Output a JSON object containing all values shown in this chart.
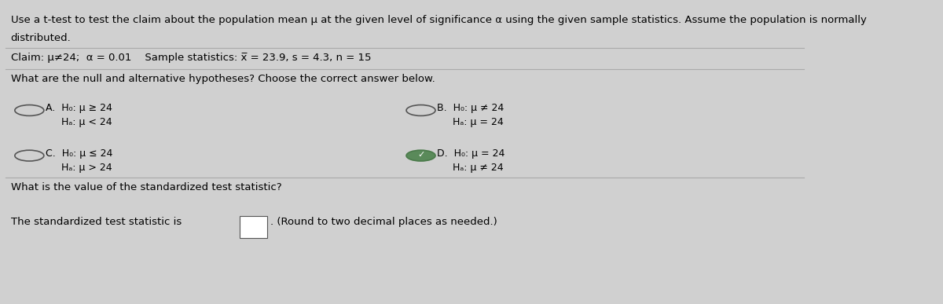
{
  "bg_color": "#d0d0d0",
  "panel_color": "#e8e8e8",
  "text_color": "#000000",
  "line1": "Use a t-test to test the claim about the population mean μ at the given level of significance α using the given sample statistics. Assume the population is normally",
  "line2": "distributed.",
  "claim_line": "Claim: μ≠24;  α = 0.01    Sample statistics: x̅ = 23.9, s = 4.3, n = 15",
  "question1": "What are the null and alternative hypotheses? Choose the correct answer below.",
  "opt_A_line1": "A.  H₀: μ ≥ 24",
  "opt_A_line2": "     Hₐ: μ < 24",
  "opt_B_line1": "B.  H₀: μ ≠ 24",
  "opt_B_line2": "     Hₐ: μ = 24",
  "opt_C_line1": "C.  H₀: μ ≤ 24",
  "opt_C_line2": "     Hₐ: μ > 24",
  "opt_D_line1": "D.  H₀: μ = 24",
  "opt_D_line2": "     Hₐ: μ ≠ 24",
  "question2": "What is the value of the standardized test statistic?",
  "sep_color": "#aaaaaa",
  "circle_edge_color": "#555555",
  "selected_fill_color": "#5a8a5a",
  "selected_edge_color": "#4a7a4a",
  "box_edge_color": "#555555",
  "fs_main": 9.5,
  "fs_small": 9.0
}
